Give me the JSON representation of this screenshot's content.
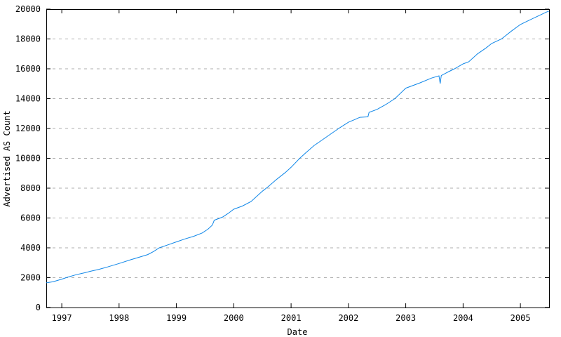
{
  "chart_data": {
    "type": "line",
    "title": "",
    "xlabel": "Date",
    "ylabel": "Advertised AS Count",
    "xlim": [
      1996.73,
      2005.5
    ],
    "ylim": [
      0,
      20000
    ],
    "x_ticks": [
      1997,
      1998,
      1999,
      2000,
      2001,
      2002,
      2003,
      2004,
      2005
    ],
    "y_ticks": [
      0,
      2000,
      4000,
      6000,
      8000,
      10000,
      12000,
      14000,
      16000,
      18000,
      20000
    ],
    "grid": "horizontal-dashed",
    "legend": "none",
    "colors": {
      "line": "#0e86e8",
      "grid": "#adadad",
      "axis": "#000000",
      "text": "#000000",
      "background": "#ffffff"
    },
    "series": [
      {
        "name": "Advertised AS Count",
        "color": "#0e86e8",
        "points": [
          [
            1996.73,
            1650
          ],
          [
            1996.85,
            1730
          ],
          [
            1997.0,
            1900
          ],
          [
            1997.1,
            2030
          ],
          [
            1997.25,
            2200
          ],
          [
            1997.4,
            2330
          ],
          [
            1997.5,
            2430
          ],
          [
            1997.65,
            2560
          ],
          [
            1997.8,
            2720
          ],
          [
            1998.0,
            2950
          ],
          [
            1998.2,
            3200
          ],
          [
            1998.35,
            3370
          ],
          [
            1998.5,
            3550
          ],
          [
            1998.6,
            3750
          ],
          [
            1998.7,
            4000
          ],
          [
            1998.85,
            4200
          ],
          [
            1999.0,
            4400
          ],
          [
            1999.15,
            4600
          ],
          [
            1999.3,
            4770
          ],
          [
            1999.45,
            5000
          ],
          [
            1999.55,
            5250
          ],
          [
            1999.62,
            5500
          ],
          [
            1999.64,
            5650
          ],
          [
            1999.66,
            5850
          ],
          [
            1999.8,
            6050
          ],
          [
            1999.9,
            6300
          ],
          [
            2000.0,
            6590
          ],
          [
            2000.15,
            6800
          ],
          [
            2000.3,
            7100
          ],
          [
            2000.4,
            7450
          ],
          [
            2000.5,
            7800
          ],
          [
            2000.6,
            8100
          ],
          [
            2000.75,
            8600
          ],
          [
            2000.9,
            9050
          ],
          [
            2001.0,
            9400
          ],
          [
            2001.15,
            10000
          ],
          [
            2001.25,
            10350
          ],
          [
            2001.4,
            10850
          ],
          [
            2001.55,
            11250
          ],
          [
            2001.7,
            11650
          ],
          [
            2001.85,
            12050
          ],
          [
            2002.0,
            12420
          ],
          [
            2002.1,
            12580
          ],
          [
            2002.2,
            12750
          ],
          [
            2002.34,
            12780
          ],
          [
            2002.36,
            13080
          ],
          [
            2002.5,
            13280
          ],
          [
            2002.65,
            13600
          ],
          [
            2002.81,
            14000
          ],
          [
            2003.0,
            14700
          ],
          [
            2003.25,
            15060
          ],
          [
            2003.45,
            15380
          ],
          [
            2003.58,
            15530
          ],
          [
            2003.6,
            15010
          ],
          [
            2003.62,
            15550
          ],
          [
            2003.75,
            15810
          ],
          [
            2003.85,
            16000
          ],
          [
            2004.0,
            16330
          ],
          [
            2004.1,
            16470
          ],
          [
            2004.25,
            17000
          ],
          [
            2004.4,
            17400
          ],
          [
            2004.5,
            17700
          ],
          [
            2004.67,
            18000
          ],
          [
            2004.85,
            18550
          ],
          [
            2005.0,
            18970
          ],
          [
            2005.15,
            19250
          ],
          [
            2005.3,
            19520
          ],
          [
            2005.45,
            19800
          ],
          [
            2005.5,
            19870
          ]
        ]
      }
    ]
  }
}
